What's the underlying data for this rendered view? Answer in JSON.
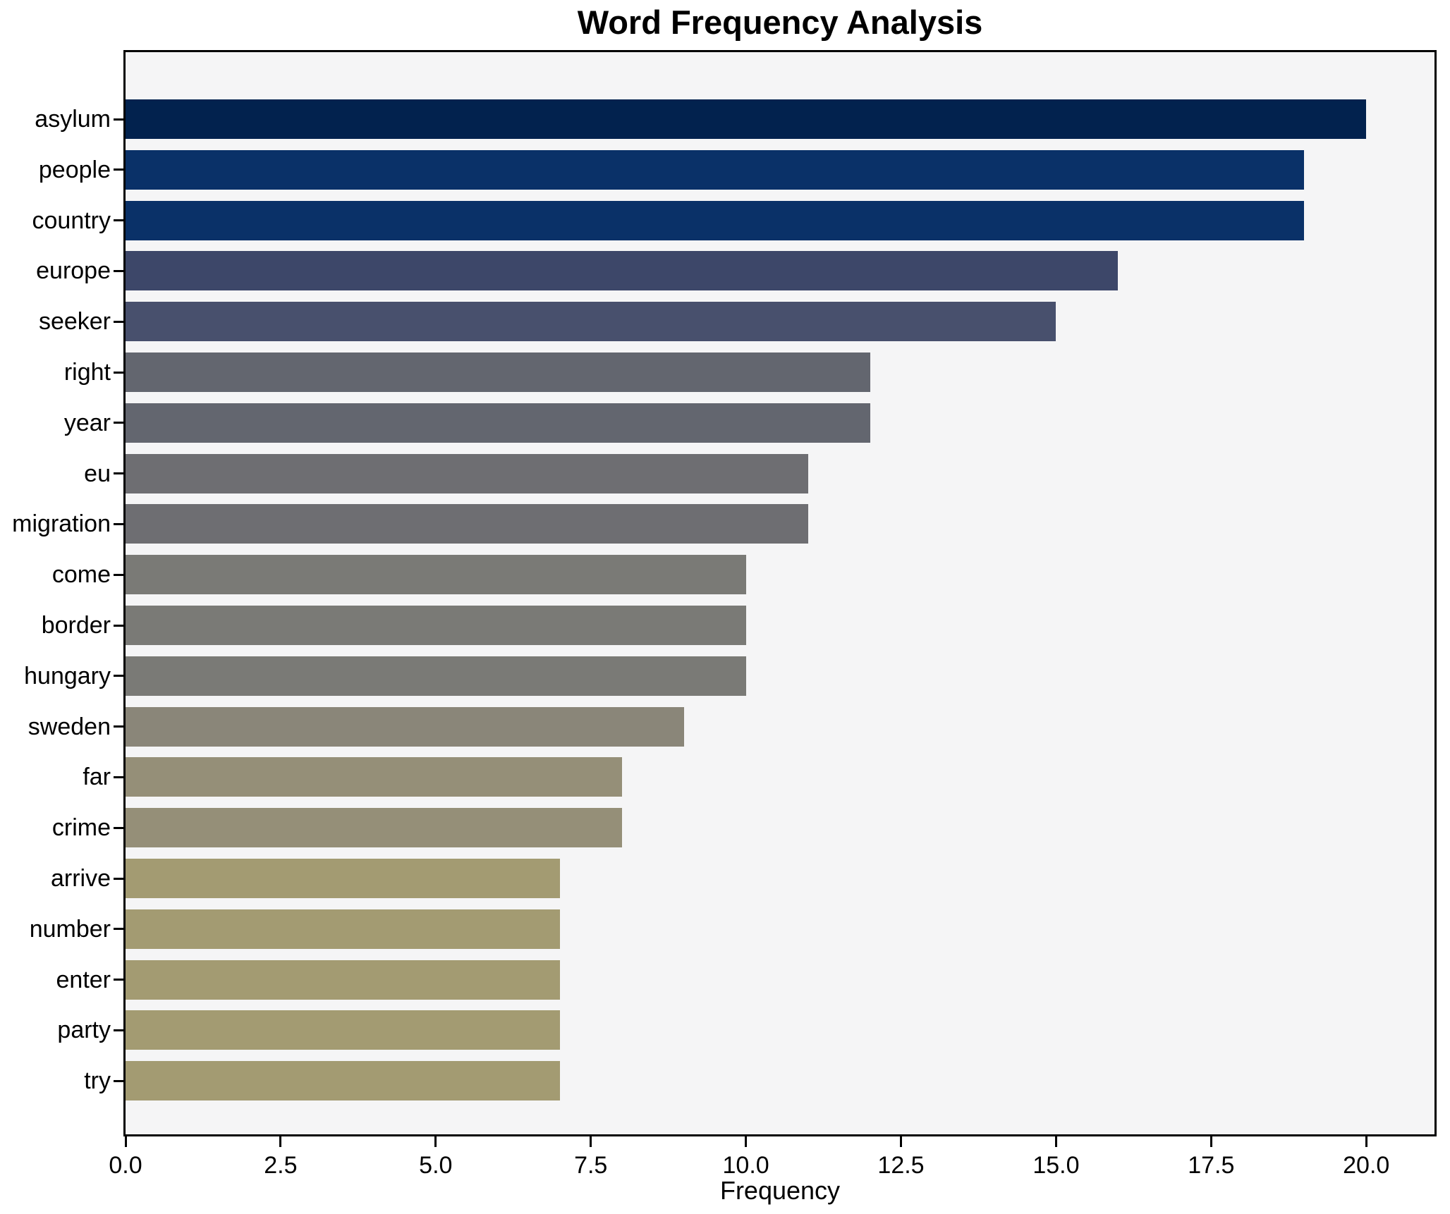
{
  "page": {
    "background": "#ffffff"
  },
  "chart_data": {
    "type": "bar",
    "orientation": "horizontal",
    "title": "Word Frequency Analysis",
    "xlabel": "Frequency",
    "ylabel": "",
    "categories": [
      "asylum",
      "people",
      "country",
      "europe",
      "seeker",
      "right",
      "year",
      "eu",
      "migration",
      "come",
      "border",
      "hungary",
      "sweden",
      "far",
      "crime",
      "arrive",
      "number",
      "enter",
      "party",
      "try"
    ],
    "values": [
      20,
      19,
      19,
      16,
      15,
      12,
      12,
      11,
      11,
      10,
      10,
      10,
      9,
      8,
      8,
      7,
      7,
      7,
      7,
      7
    ],
    "bar_colors": [
      "#02224e",
      "#0a3168",
      "#0a3168",
      "#3d4769",
      "#48506d",
      "#63666f",
      "#63666f",
      "#6e6e72",
      "#6e6e72",
      "#7a7a76",
      "#7a7a76",
      "#7a7a76",
      "#8a8679",
      "#958f78",
      "#958f78",
      "#a39b72",
      "#a39b72",
      "#a39b72",
      "#a39b72",
      "#a39b72"
    ],
    "xlim": [
      0,
      21.1
    ],
    "xticks": [
      0,
      2.5,
      5,
      7.5,
      10,
      12.5,
      15,
      17.5,
      20
    ],
    "xtick_labels": [
      "0.0",
      "2.5",
      "5.0",
      "7.5",
      "10.0",
      "12.5",
      "15.0",
      "17.5",
      "20.0"
    ],
    "grid": false,
    "legend": null,
    "plot_background": "#f5f5f6",
    "spine_color": "#000000"
  }
}
